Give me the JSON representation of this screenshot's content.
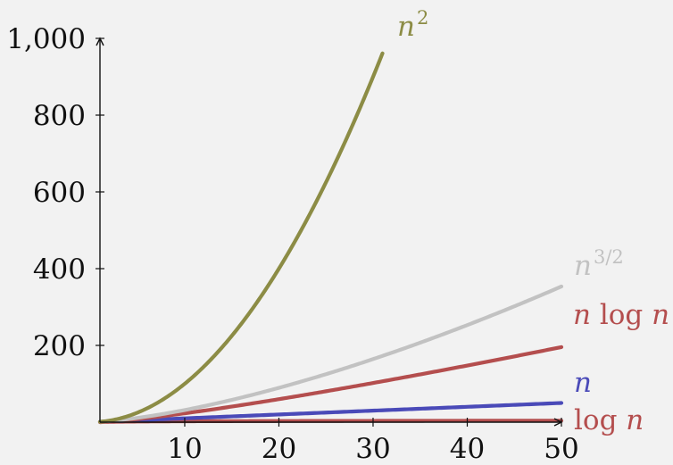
{
  "chart_data": {
    "type": "line",
    "title": "",
    "xlabel": "",
    "ylabel": "",
    "xlim": [
      1,
      50
    ],
    "ylim": [
      0,
      1000
    ],
    "x_ticks": [
      10,
      20,
      30,
      40,
      50
    ],
    "x_tick_labels": [
      "10",
      "20",
      "30",
      "40",
      "50"
    ],
    "y_ticks": [
      200,
      400,
      600,
      800,
      1000
    ],
    "y_tick_labels": [
      "200",
      "400",
      "600",
      "800",
      "1,000"
    ],
    "grid": false,
    "legend": "none",
    "series": [
      {
        "name": "n^2",
        "function": "n^2",
        "x_range": [
          1,
          31
        ],
        "color": "#8c8c45",
        "label_parts": [
          [
            "n",
            "i"
          ],
          [
            "2",
            "sup"
          ]
        ]
      },
      {
        "name": "n^{3/2}",
        "function": "n^1.5",
        "x_range": [
          1,
          50
        ],
        "color": "#c2c2c2",
        "label_parts": [
          [
            "n",
            "i"
          ],
          [
            "3/2",
            "sup"
          ]
        ]
      },
      {
        "name": "n log n",
        "function": "n*ln(n)",
        "x_range": [
          1,
          50
        ],
        "color": "#b44e4e",
        "label_parts": [
          [
            "n",
            "i"
          ],
          [
            " log ",
            "r"
          ],
          [
            "n",
            "i"
          ]
        ]
      },
      {
        "name": "n",
        "function": "n",
        "x_range": [
          1,
          50
        ],
        "color": "#4a4ab8",
        "label_parts": [
          [
            "n",
            "i"
          ]
        ]
      },
      {
        "name": "log n",
        "function": "ln(n)",
        "x_range": [
          1,
          50
        ],
        "color": "#b44e4e",
        "label_parts": [
          [
            "log ",
            "r"
          ],
          [
            "n",
            "i"
          ]
        ]
      }
    ]
  }
}
